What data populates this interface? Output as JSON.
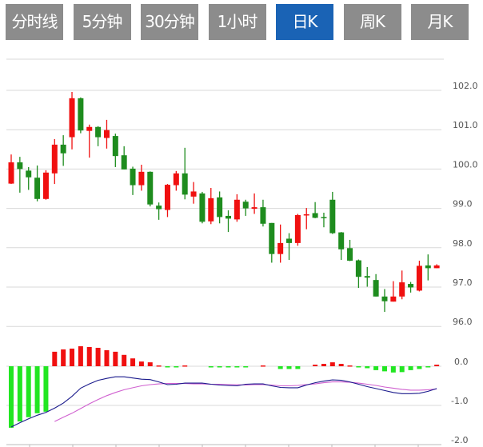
{
  "tabs": [
    {
      "label": "分时线",
      "active": false
    },
    {
      "label": "5分钟",
      "active": false
    },
    {
      "label": "30分钟",
      "active": false
    },
    {
      "label": "1小时",
      "active": false
    },
    {
      "label": "日K",
      "active": true
    },
    {
      "label": "周K",
      "active": false
    },
    {
      "label": "月K",
      "active": false
    }
  ],
  "colors": {
    "up": "#f01010",
    "down": "#1e8c1e",
    "hist_up": "#f01010",
    "hist_down": "#22e622",
    "dif": "#1a1a8c",
    "dea": "#d060d0",
    "tab": "#8c8c8c",
    "tab_active": "#1a63b5",
    "grid": "#d8d8d8"
  },
  "chart_data": [
    {
      "type": "candlestick",
      "title": "",
      "y_ticks": [
        "102.0",
        "101.0",
        "100.0",
        "99.0",
        "98.0",
        "97.0",
        "96.0"
      ],
      "ylim": [
        96.0,
        102.0
      ],
      "grid": true,
      "ohlc": [
        [
          99.63,
          100.37,
          99.62,
          100.17
        ],
        [
          100.17,
          100.31,
          99.4,
          100.0
        ],
        [
          99.96,
          100.05,
          99.47,
          99.79
        ],
        [
          99.78,
          100.09,
          99.18,
          99.24
        ],
        [
          99.24,
          99.97,
          99.22,
          99.91
        ],
        [
          99.89,
          100.76,
          99.62,
          100.62
        ],
        [
          100.62,
          100.86,
          100.08,
          100.4
        ],
        [
          100.81,
          101.96,
          100.5,
          101.8
        ],
        [
          101.8,
          101.82,
          100.91,
          100.98
        ],
        [
          100.97,
          101.13,
          100.29,
          101.07
        ],
        [
          101.07,
          101.09,
          100.58,
          100.81
        ],
        [
          100.79,
          101.25,
          100.52,
          100.99
        ],
        [
          100.84,
          100.9,
          100.05,
          100.33
        ],
        [
          100.35,
          100.58,
          99.99,
          99.99
        ],
        [
          100.01,
          100.06,
          99.34,
          99.59
        ],
        [
          99.59,
          100.11,
          99.45,
          99.93
        ],
        [
          99.93,
          99.94,
          99.05,
          99.1
        ],
        [
          99.07,
          99.15,
          98.71,
          98.98
        ],
        [
          98.96,
          99.62,
          98.78,
          99.6
        ],
        [
          99.59,
          99.95,
          99.45,
          99.89
        ],
        [
          99.89,
          100.54,
          99.23,
          99.35
        ],
        [
          99.3,
          99.67,
          99.12,
          99.43
        ],
        [
          99.38,
          99.42,
          98.62,
          98.66
        ],
        [
          98.67,
          99.52,
          98.6,
          99.26
        ],
        [
          99.28,
          99.43,
          98.62,
          98.78
        ],
        [
          98.81,
          98.95,
          98.4,
          98.74
        ],
        [
          98.72,
          99.36,
          98.66,
          99.22
        ],
        [
          99.17,
          99.22,
          98.81,
          99.0
        ],
        [
          98.99,
          99.38,
          98.86,
          99.03
        ],
        [
          99.03,
          99.22,
          98.54,
          98.61
        ],
        [
          98.63,
          98.63,
          97.62,
          97.84
        ],
        [
          97.84,
          98.59,
          97.62,
          98.12
        ],
        [
          98.23,
          98.37,
          97.69,
          98.12
        ],
        [
          98.12,
          98.86,
          98.05,
          98.83
        ],
        [
          98.82,
          99.01,
          98.47,
          98.85
        ],
        [
          98.88,
          99.16,
          98.75,
          98.76
        ],
        [
          98.78,
          98.89,
          98.52,
          98.76
        ],
        [
          99.22,
          99.42,
          98.35,
          98.37
        ],
        [
          98.39,
          98.4,
          97.69,
          97.96
        ],
        [
          97.99,
          98.2,
          97.66,
          97.67
        ],
        [
          97.68,
          97.7,
          96.98,
          97.26
        ],
        [
          97.28,
          97.51,
          97.01,
          97.24
        ],
        [
          97.18,
          97.33,
          96.76,
          96.76
        ],
        [
          96.76,
          96.95,
          96.37,
          96.64
        ],
        [
          96.63,
          97.15,
          96.63,
          96.76
        ],
        [
          96.76,
          97.42,
          96.69,
          97.12
        ],
        [
          97.08,
          97.13,
          96.86,
          96.99
        ],
        [
          96.91,
          97.67,
          96.89,
          97.54
        ],
        [
          97.55,
          97.83,
          97.17,
          97.48
        ],
        [
          97.48,
          97.58,
          97.48,
          97.55
        ]
      ]
    },
    {
      "type": "macd",
      "y_ticks": [
        "0.0",
        "-1.0",
        "-2.0"
      ],
      "ylim": [
        -2.0,
        0.25
      ],
      "grid": true,
      "histogram": [
        -1.57,
        -1.41,
        -1.3,
        -1.2,
        -1.16,
        0.37,
        0.43,
        0.45,
        0.51,
        0.49,
        0.47,
        0.41,
        0.37,
        0.29,
        0.2,
        0.12,
        0.1,
        0.02,
        -0.01,
        -0.01,
        0.02,
        0,
        0,
        -0.02,
        -0.02,
        -0.02,
        -0.01,
        -0.01,
        0,
        0.02,
        0,
        -0.07,
        -0.07,
        -0.07,
        0,
        0.04,
        0.06,
        0.1,
        0.06,
        0.02,
        -0.01,
        -0.05,
        -0.1,
        -0.13,
        -0.16,
        -0.15,
        -0.1,
        -0.07,
        -0.02,
        0.04
      ],
      "dif": [
        -1.55,
        -1.44,
        -1.34,
        -1.25,
        -1.18,
        -1.07,
        -0.94,
        -0.77,
        -0.56,
        -0.45,
        -0.36,
        -0.31,
        -0.27,
        -0.27,
        -0.3,
        -0.33,
        -0.34,
        -0.4,
        -0.47,
        -0.46,
        -0.43,
        -0.43,
        -0.43,
        -0.46,
        -0.48,
        -0.49,
        -0.5,
        -0.46,
        -0.45,
        -0.45,
        -0.5,
        -0.54,
        -0.55,
        -0.55,
        -0.48,
        -0.42,
        -0.38,
        -0.35,
        -0.36,
        -0.4,
        -0.46,
        -0.52,
        -0.57,
        -0.62,
        -0.67,
        -0.7,
        -0.7,
        -0.69,
        -0.64,
        -0.57
      ],
      "dea": [
        null,
        null,
        null,
        null,
        null,
        -1.41,
        -1.3,
        -1.2,
        -1.08,
        -0.96,
        -0.85,
        -0.75,
        -0.67,
        -0.6,
        -0.55,
        -0.5,
        -0.47,
        -0.45,
        -0.44,
        -0.44,
        -0.44,
        -0.45,
        -0.45,
        -0.46,
        -0.46,
        -0.47,
        -0.47,
        -0.48,
        -0.47,
        -0.47,
        -0.48,
        -0.5,
        -0.5,
        -0.49,
        -0.47,
        -0.45,
        -0.42,
        -0.4,
        -0.4,
        -0.41,
        -0.43,
        -0.46,
        -0.49,
        -0.53,
        -0.56,
        -0.59,
        -0.61,
        -0.61,
        -0.6,
        -0.58
      ]
    }
  ]
}
